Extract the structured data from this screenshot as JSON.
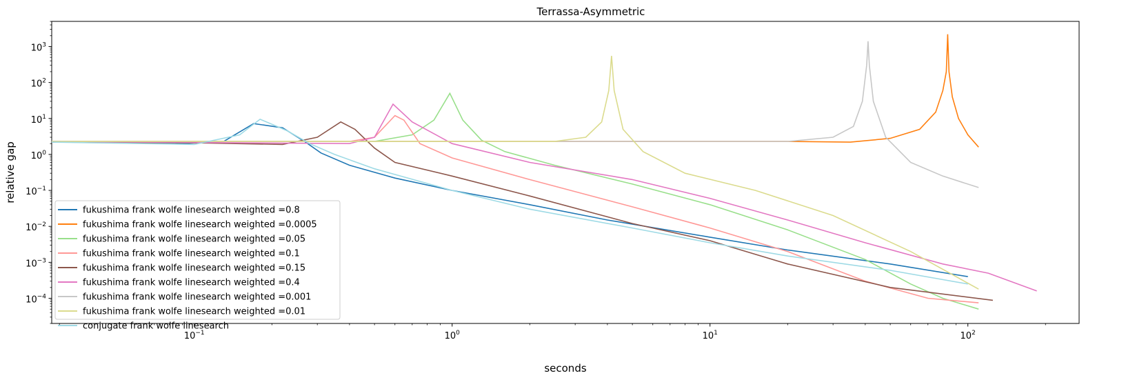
{
  "chart_data": {
    "type": "line",
    "title": "Terrassa-Asymmetric",
    "xlabel": "seconds",
    "ylabel": "relative gap",
    "xscale": "log",
    "yscale": "log",
    "xlim": [
      0.028,
      270
    ],
    "ylim": [
      2e-05,
      5000
    ],
    "grid": false,
    "legend_position": "lower-left",
    "x_ticks": [
      {
        "value": 0.1,
        "base": "10",
        "exp": "−1"
      },
      {
        "value": 1,
        "base": "10",
        "exp": "0"
      },
      {
        "value": 10,
        "base": "10",
        "exp": "1"
      },
      {
        "value": 100,
        "base": "10",
        "exp": "2"
      }
    ],
    "y_ticks": [
      {
        "value": 0.0001,
        "base": "10",
        "exp": "−4"
      },
      {
        "value": 0.001,
        "base": "10",
        "exp": "−3"
      },
      {
        "value": 0.01,
        "base": "10",
        "exp": "−2"
      },
      {
        "value": 0.1,
        "base": "10",
        "exp": "−1"
      },
      {
        "value": 1,
        "base": "10",
        "exp": "0"
      },
      {
        "value": 10,
        "base": "10",
        "exp": "1"
      },
      {
        "value": 100,
        "base": "10",
        "exp": "2"
      },
      {
        "value": 1000,
        "base": "10",
        "exp": "3"
      }
    ],
    "series": [
      {
        "name": "fukushima frank wolfe linesearch weighted =0.8",
        "color": "#1f77b4",
        "points": [
          [
            0.028,
            2.2
          ],
          [
            0.05,
            2.15
          ],
          [
            0.09,
            2.0
          ],
          [
            0.13,
            2.3
          ],
          [
            0.17,
            7.2
          ],
          [
            0.22,
            5.5
          ],
          [
            0.27,
            2.2
          ],
          [
            0.31,
            1.1
          ],
          [
            0.4,
            0.5
          ],
          [
            0.6,
            0.22
          ],
          [
            1.0,
            0.1
          ],
          [
            2.0,
            0.04
          ],
          [
            4.0,
            0.015
          ],
          [
            10.0,
            0.005
          ],
          [
            20.0,
            0.0022
          ],
          [
            50.0,
            0.0009
          ],
          [
            100.0,
            0.0004
          ]
        ]
      },
      {
        "name": "fukushima frank wolfe linesearch weighted =0.0005",
        "color": "#ff7f0e",
        "points": [
          [
            0.028,
            2.3
          ],
          [
            20.0,
            2.3
          ],
          [
            35.0,
            2.2
          ],
          [
            50.0,
            2.8
          ],
          [
            65.0,
            5.0
          ],
          [
            75.0,
            15.0
          ],
          [
            80.0,
            60.0
          ],
          [
            82.5,
            200.0
          ],
          [
            83.5,
            2200.0
          ],
          [
            84.5,
            200.0
          ],
          [
            87.0,
            40.0
          ],
          [
            92.0,
            10.0
          ],
          [
            100.0,
            3.5
          ],
          [
            110.0,
            1.6
          ]
        ]
      },
      {
        "name": "fukushima frank wolfe linesearch weighted =0.05",
        "color": "#98df8a",
        "points": [
          [
            0.028,
            2.3
          ],
          [
            0.5,
            2.3
          ],
          [
            0.7,
            3.5
          ],
          [
            0.85,
            9.0
          ],
          [
            0.98,
            50.0
          ],
          [
            1.1,
            9.0
          ],
          [
            1.3,
            2.5
          ],
          [
            1.6,
            1.2
          ],
          [
            2.5,
            0.5
          ],
          [
            5.0,
            0.15
          ],
          [
            10.0,
            0.04
          ],
          [
            20.0,
            0.008
          ],
          [
            40.0,
            0.0012
          ],
          [
            60.0,
            0.00025
          ],
          [
            80.0,
            0.0001
          ],
          [
            110.0,
            5e-05
          ]
        ]
      },
      {
        "name": "fukushima frank wolfe linesearch weighted =0.1",
        "color": "#ff9896",
        "points": [
          [
            0.028,
            2.3
          ],
          [
            0.4,
            2.3
          ],
          [
            0.5,
            3.0
          ],
          [
            0.6,
            12.0
          ],
          [
            0.65,
            9.0
          ],
          [
            0.75,
            2.0
          ],
          [
            1.0,
            0.8
          ],
          [
            2.0,
            0.2
          ],
          [
            5.0,
            0.035
          ],
          [
            10.0,
            0.009
          ],
          [
            20.0,
            0.002
          ],
          [
            40.0,
            0.0003
          ],
          [
            70.0,
            0.0001
          ],
          [
            110.0,
            7.5e-05
          ]
        ]
      },
      {
        "name": "fukushima frank wolfe linesearch weighted =0.15",
        "color": "#8c564b",
        "points": [
          [
            0.028,
            2.2
          ],
          [
            0.1,
            2.1
          ],
          [
            0.22,
            1.9
          ],
          [
            0.3,
            3.0
          ],
          [
            0.37,
            8.0
          ],
          [
            0.42,
            5.0
          ],
          [
            0.5,
            1.5
          ],
          [
            0.6,
            0.6
          ],
          [
            1.0,
            0.25
          ],
          [
            2.0,
            0.07
          ],
          [
            5.0,
            0.012
          ],
          [
            10.0,
            0.004
          ],
          [
            20.0,
            0.0009
          ],
          [
            50.0,
            0.0002
          ],
          [
            125.0,
            8.8e-05
          ]
        ]
      },
      {
        "name": "fukushima frank wolfe linesearch weighted =0.4",
        "color": "#e377c2",
        "points": [
          [
            0.028,
            2.3
          ],
          [
            0.4,
            2.0
          ],
          [
            0.5,
            3.0
          ],
          [
            0.59,
            25.0
          ],
          [
            0.7,
            8.0
          ],
          [
            1.0,
            2.0
          ],
          [
            2.0,
            0.6
          ],
          [
            5.0,
            0.2
          ],
          [
            10.0,
            0.06
          ],
          [
            20.0,
            0.015
          ],
          [
            40.0,
            0.0035
          ],
          [
            80.0,
            0.0009
          ],
          [
            120.0,
            0.0005
          ],
          [
            185.0,
            0.00016
          ]
        ]
      },
      {
        "name": "fukushima frank wolfe linesearch weighted =0.001",
        "color": "#c7c7c7",
        "points": [
          [
            0.028,
            2.3
          ],
          [
            20.0,
            2.3
          ],
          [
            30.0,
            3.0
          ],
          [
            36.0,
            6.0
          ],
          [
            39.0,
            30.0
          ],
          [
            40.5,
            300.0
          ],
          [
            41.0,
            1400.0
          ],
          [
            41.5,
            300.0
          ],
          [
            43.0,
            30.0
          ],
          [
            48.0,
            3.0
          ],
          [
            60.0,
            0.6
          ],
          [
            80.0,
            0.25
          ],
          [
            110.0,
            0.12
          ]
        ]
      },
      {
        "name": "fukushima frank wolfe linesearch weighted =0.01",
        "color": "#dbdb8d",
        "points": [
          [
            0.028,
            2.3
          ],
          [
            2.5,
            2.3
          ],
          [
            3.3,
            3.0
          ],
          [
            3.8,
            8.0
          ],
          [
            4.05,
            60.0
          ],
          [
            4.15,
            550.0
          ],
          [
            4.25,
            60.0
          ],
          [
            4.6,
            5.0
          ],
          [
            5.5,
            1.2
          ],
          [
            8.0,
            0.3
          ],
          [
            15.0,
            0.1
          ],
          [
            30.0,
            0.02
          ],
          [
            60.0,
            0.002
          ],
          [
            110.0,
            0.00018
          ]
        ]
      },
      {
        "name": "conjugate frank wolfe linesearch",
        "color": "#9edae5",
        "points": [
          [
            0.028,
            2.2
          ],
          [
            0.1,
            1.9
          ],
          [
            0.15,
            3.5
          ],
          [
            0.18,
            9.5
          ],
          [
            0.23,
            4.5
          ],
          [
            0.28,
            2.0
          ],
          [
            0.35,
            1.0
          ],
          [
            0.5,
            0.4
          ],
          [
            1.0,
            0.1
          ],
          [
            2.0,
            0.03
          ],
          [
            5.0,
            0.009
          ],
          [
            10.0,
            0.0035
          ],
          [
            20.0,
            0.0015
          ],
          [
            50.0,
            0.0006
          ],
          [
            100.0,
            0.00025
          ]
        ]
      }
    ]
  }
}
